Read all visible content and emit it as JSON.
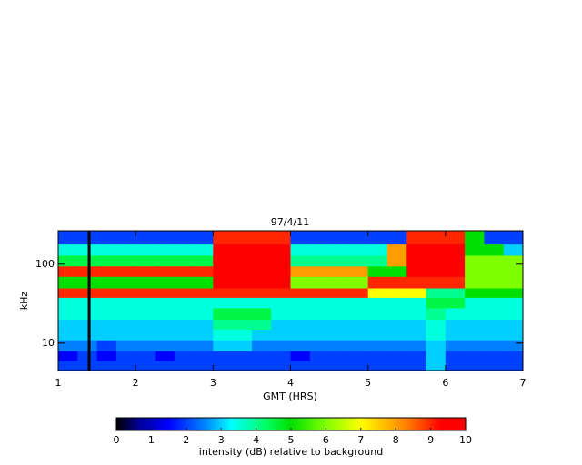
{
  "chart_data": {
    "type": "heatmap",
    "title": "97/4/11",
    "x_label": "GMT (HRS)",
    "y_label": "kHz",
    "xlim": [
      1,
      7
    ],
    "xticks": [
      1,
      2,
      3,
      4,
      5,
      6,
      7
    ],
    "ylim": [
      4.5,
      265
    ],
    "yticks": [
      10,
      100
    ],
    "y_scale": "log",
    "xbins": [
      1,
      1.25,
      1.5,
      1.75,
      2,
      2.25,
      2.5,
      2.75,
      3,
      3.25,
      3.5,
      3.75,
      4,
      4.25,
      4.5,
      4.75,
      5,
      5.25,
      5.5,
      5.75,
      6,
      6.25,
      6.5,
      6.75,
      7
    ],
    "ybins": [
      4.5,
      6,
      8,
      11,
      15,
      20,
      28,
      38,
      50,
      70,
      95,
      130,
      180,
      265
    ],
    "z": [
      [
        2,
        2,
        2,
        2,
        2,
        2,
        2,
        2,
        2,
        2,
        2,
        2,
        2,
        2,
        2,
        2,
        2,
        2,
        2,
        3,
        2,
        2,
        2,
        2
      ],
      [
        1.5,
        2,
        1.5,
        2,
        2,
        1.5,
        2,
        2,
        2,
        2,
        2,
        2,
        1.5,
        2,
        2,
        2,
        2,
        2,
        2,
        3,
        2,
        2,
        2,
        2
      ],
      [
        2.5,
        2.5,
        2,
        2.5,
        2.5,
        2.5,
        2.5,
        2.5,
        3,
        3,
        2.5,
        2.5,
        2.5,
        2.5,
        2.5,
        2.5,
        2.5,
        2.5,
        2.5,
        3,
        2.5,
        2.5,
        2.5,
        2.5
      ],
      [
        3,
        3,
        3,
        3,
        3,
        3,
        3,
        3,
        3.5,
        3.5,
        3,
        3,
        3,
        3,
        3,
        3,
        3,
        3,
        3,
        3.5,
        3,
        3,
        3,
        3
      ],
      [
        3,
        3,
        3,
        3,
        3,
        3,
        3,
        3,
        4,
        4,
        4,
        3,
        3,
        3,
        3,
        3,
        3,
        3,
        3,
        3.5,
        3,
        3,
        3,
        3
      ],
      [
        3.5,
        3.5,
        3.5,
        3.5,
        3.5,
        3.5,
        3.5,
        3.5,
        4.5,
        4.5,
        4.5,
        3.5,
        3.5,
        3.5,
        3.5,
        3.5,
        3.5,
        3.5,
        3.5,
        4,
        3.5,
        3.5,
        3.5,
        3.5
      ],
      [
        3.5,
        3.5,
        3.5,
        3.5,
        3.5,
        3.5,
        3.5,
        3.5,
        3.5,
        3.5,
        3.5,
        3.5,
        3.5,
        3.5,
        3.5,
        3.5,
        3.5,
        3.5,
        3.5,
        4.5,
        4.5,
        3.5,
        3.5,
        3.5
      ],
      [
        9,
        9,
        9,
        9,
        9,
        9,
        9,
        9,
        9,
        9,
        9,
        9,
        9,
        9,
        9,
        9,
        7,
        7,
        7,
        4,
        4,
        5,
        5,
        5
      ],
      [
        5,
        5,
        5,
        5,
        5,
        5,
        5,
        5,
        10,
        10,
        10,
        10,
        6,
        6,
        6,
        6,
        9,
        9,
        9,
        9,
        9,
        6,
        6,
        6
      ],
      [
        9,
        9,
        9,
        9,
        9,
        9,
        9,
        9,
        10,
        10,
        10,
        10,
        8,
        8,
        8,
        8,
        5,
        5,
        10,
        10,
        10,
        6,
        6,
        6
      ],
      [
        4.5,
        4.5,
        4.5,
        4.5,
        4.5,
        4.5,
        4.5,
        4.5,
        10,
        10,
        10,
        10,
        4,
        4,
        4,
        4,
        4,
        8,
        10,
        10,
        10,
        6,
        6,
        6
      ],
      [
        3.5,
        3.5,
        3.5,
        3.5,
        3.5,
        3.5,
        3.5,
        3.5,
        10,
        10,
        10,
        10,
        3.5,
        3.5,
        3.5,
        3.5,
        3.5,
        8,
        10,
        10,
        10,
        5,
        5,
        3
      ],
      [
        2,
        2,
        2,
        2,
        2,
        2,
        2,
        2,
        9,
        9,
        9,
        9,
        2,
        2,
        2,
        2,
        2,
        2,
        9,
        9,
        9,
        5,
        2,
        2
      ]
    ],
    "gap_x": 1.4,
    "colorbar": {
      "label": "intensity (dB) relative to background",
      "lim": [
        0,
        10
      ],
      "ticks": [
        0,
        1,
        2,
        3,
        4,
        5,
        6,
        7,
        8,
        9,
        10
      ]
    },
    "colormap": [
      [
        0,
        "#000000"
      ],
      [
        0.7,
        "#0000a0"
      ],
      [
        1.5,
        "#0000ff"
      ],
      [
        2.5,
        "#0080ff"
      ],
      [
        3.3,
        "#00ffff"
      ],
      [
        4.3,
        "#00ff60"
      ],
      [
        5,
        "#00e000"
      ],
      [
        6,
        "#80ff00"
      ],
      [
        7,
        "#ffff00"
      ],
      [
        8.3,
        "#ff8000"
      ],
      [
        9.3,
        "#ff0000"
      ],
      [
        10,
        "#ff0000"
      ]
    ]
  }
}
